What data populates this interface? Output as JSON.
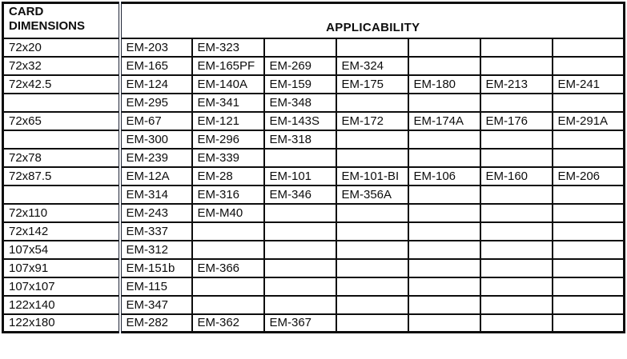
{
  "header": {
    "card_dimensions_line1": "CARD",
    "card_dimensions_line2": "DIMENSIONS",
    "applicability": "APPLICABILITY"
  },
  "rows": [
    {
      "dimension": "72x20",
      "models": [
        "EM-203",
        "EM-323",
        "",
        "",
        "",
        "",
        ""
      ]
    },
    {
      "dimension": "72x32",
      "models": [
        "EM-165",
        "EM-165PF",
        "EM-269",
        "EM-324",
        "",
        "",
        ""
      ]
    },
    {
      "dimension": "72x42.5",
      "models": [
        "EM-124",
        "EM-140A",
        "EM-159",
        "EM-175",
        "EM-180",
        "EM-213",
        "EM-241"
      ]
    },
    {
      "dimension": "",
      "models": [
        "EM-295",
        "EM-341",
        "EM-348",
        "",
        "",
        "",
        ""
      ]
    },
    {
      "dimension": "72x65",
      "models": [
        "EM-67",
        "EM-121",
        "EM-143S",
        "EM-172",
        "EM-174A",
        "EM-176",
        "EM-291A"
      ]
    },
    {
      "dimension": "",
      "models": [
        "EM-300",
        "EM-296",
        "EM-318",
        "",
        "",
        "",
        ""
      ]
    },
    {
      "dimension": "72x78",
      "models": [
        "EM-239",
        "EM-339",
        "",
        "",
        "",
        "",
        ""
      ]
    },
    {
      "dimension": "72x87.5",
      "models": [
        "EM-12A",
        "EM-28",
        "EM-101",
        "EM-101-BI",
        "EM-106",
        "EM-160",
        "EM-206"
      ]
    },
    {
      "dimension": "",
      "models": [
        "EM-314",
        "EM-316",
        "EM-346",
        "EM-356A",
        "",
        "",
        ""
      ]
    },
    {
      "dimension": "72x110",
      "models": [
        "EM-243",
        "EM-M40",
        "",
        "",
        "",
        "",
        ""
      ]
    },
    {
      "dimension": "72x142",
      "models": [
        "EM-337",
        "",
        "",
        "",
        "",
        "",
        ""
      ]
    },
    {
      "dimension": "107x54",
      "models": [
        "EM-312",
        "",
        "",
        "",
        "",
        "",
        ""
      ]
    },
    {
      "dimension": "107x91",
      "models": [
        "EM-151b",
        "EM-366",
        "",
        "",
        "",
        "",
        ""
      ]
    },
    {
      "dimension": "107x107",
      "models": [
        "EM-115",
        "",
        "",
        "",
        "",
        "",
        ""
      ]
    },
    {
      "dimension": "122x140",
      "models": [
        "EM-347",
        "",
        "",
        "",
        "",
        "",
        ""
      ]
    },
    {
      "dimension": "122x180",
      "models": [
        "EM-282",
        "EM-362",
        "EM-367",
        "",
        "",
        "",
        ""
      ]
    }
  ],
  "colors": {
    "border": "#0d0d0d",
    "divider": "#1f2637",
    "text": "#0d0d0d",
    "background": "#ffffff"
  }
}
